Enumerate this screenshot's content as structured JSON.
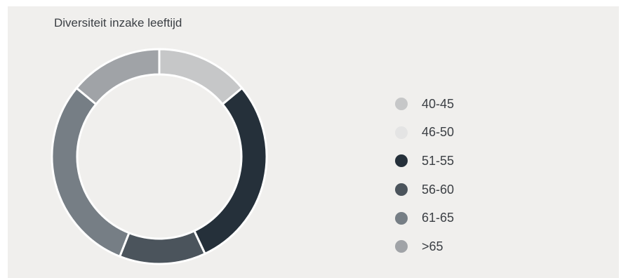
{
  "chart_data": {
    "type": "pie",
    "style": "donut",
    "title": "Diversiteit inzake leeftijd",
    "categories": [
      "40-45",
      "46-50",
      "51-55",
      "56-60",
      "61-65",
      ">65"
    ],
    "values": [
      14,
      0,
      29,
      13,
      30,
      14
    ],
    "unit": "%",
    "colors": [
      "#c6c7c8",
      "#e4e4e4",
      "#25303a",
      "#4b545c",
      "#767e85",
      "#a0a3a7"
    ],
    "legend_position": "right",
    "start_angle": "top",
    "direction": "clockwise"
  }
}
